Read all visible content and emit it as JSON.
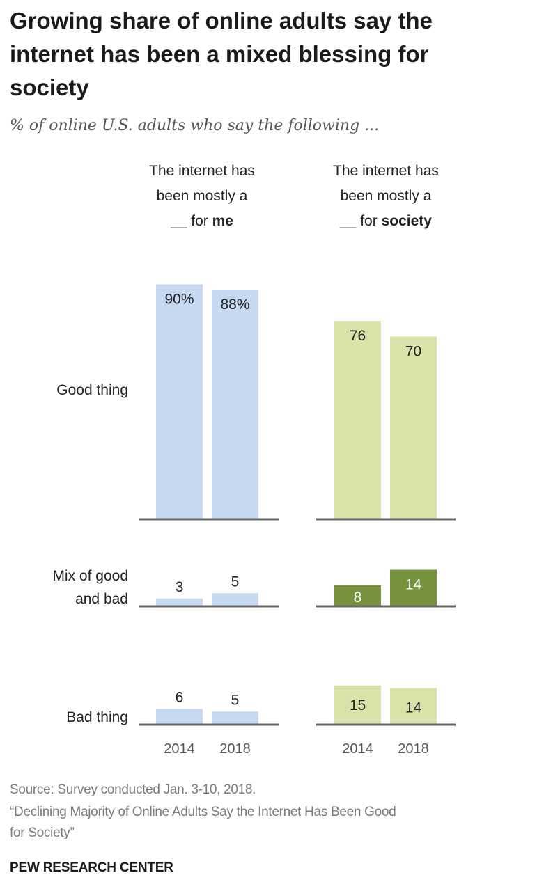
{
  "title_lines": [
    "Growing share of online adults say the",
    "internet has been a mixed blessing for",
    "society"
  ],
  "subtitle": "% of online U.S. adults who say the following ...",
  "columns": [
    {
      "line1": "The internet has",
      "line2": "been mostly a",
      "line3_prefix": "__ for ",
      "line3_bold": "me"
    },
    {
      "line1": "The internet has",
      "line2": "been mostly a",
      "line3_prefix": "__ for ",
      "line3_bold": "society"
    }
  ],
  "source_line1": "Source: Survey conducted Jan. 3-10, 2018.",
  "source_line2": "“Declining Majority of Online Adults Say the Internet Has Been Good",
  "source_line3": "for Society”",
  "brand": "PEW RESEARCH CENTER",
  "colors": {
    "me": "#c6d9f1",
    "society_light": "#d7e3a8",
    "society_dark": "#77923c",
    "axis": "#666666",
    "label_dark_text": "#ffffff",
    "label_text": "#222222"
  },
  "chart_data": {
    "type": "bar",
    "categories": [
      "2014",
      "2018"
    ],
    "panels": [
      {
        "name": "Good thing",
        "row_label_lines": [
          "Good thing"
        ],
        "me": [
          90,
          88
        ],
        "me_labels": [
          "90%",
          "88%"
        ],
        "society": [
          76,
          70
        ],
        "society_labels": [
          "76",
          "70"
        ]
      },
      {
        "name": "Mix of good and bad",
        "row_label_lines": [
          "Mix of good",
          "and bad"
        ],
        "me": [
          3,
          5
        ],
        "me_labels": [
          "3",
          "5"
        ],
        "society": [
          8,
          14
        ],
        "society_labels": [
          "8",
          "14"
        ]
      },
      {
        "name": "Bad thing",
        "row_label_lines": [
          "Bad thing"
        ],
        "me": [
          6,
          5
        ],
        "me_labels": [
          "6",
          "5"
        ],
        "society": [
          15,
          14
        ],
        "society_labels": [
          "15",
          "14"
        ]
      }
    ],
    "ylim": [
      0,
      100
    ]
  }
}
